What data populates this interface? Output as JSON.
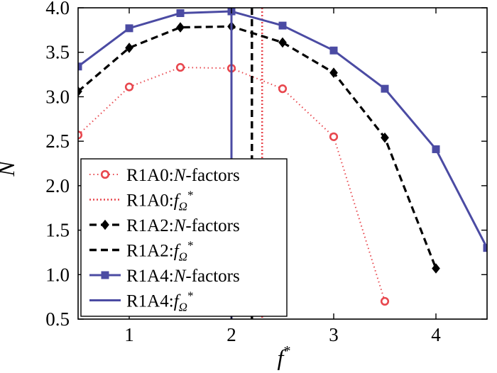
{
  "chart_data": {
    "type": "line",
    "title": "",
    "xlabel": "f*",
    "ylabel": "N",
    "xlim": [
      0.5,
      4.5
    ],
    "ylim": [
      0.5,
      4.0
    ],
    "xticks": [
      1,
      2,
      3,
      4
    ],
    "xtick_labels": [
      "1",
      "2",
      "3",
      "4"
    ],
    "yticks": [
      0.5,
      1.0,
      1.5,
      2.0,
      2.5,
      3.0,
      3.5,
      4.0
    ],
    "ytick_labels": [
      "0.5",
      "1.0",
      "1.5",
      "2.0",
      "2.5",
      "3.0",
      "3.5",
      "4.0"
    ],
    "grid": false,
    "legend_position": "lower-left",
    "series": [
      {
        "name": "R1A0:N-factors",
        "label_prefix": "R1A0:",
        "label_sym": "N",
        "label_suffix": "-factors",
        "color": "#e8474e",
        "line": "dotted",
        "marker": "open-circle",
        "x": [
          0.5,
          1.0,
          1.5,
          2.0,
          2.5,
          3.0,
          3.5
        ],
        "y": [
          2.57,
          3.11,
          3.33,
          3.32,
          3.09,
          2.55,
          0.7
        ]
      },
      {
        "name": "R1A0:fΩ*",
        "label_prefix": "R1A0:",
        "label_sym": "f",
        "label_sub": "Ω",
        "label_sup": "*",
        "color": "#e8474e",
        "line": "dotted-vertical",
        "x_value": 2.3
      },
      {
        "name": "R1A2:N-factors",
        "label_prefix": "R1A2:",
        "label_sym": "N",
        "label_suffix": "-factors",
        "color": "#000000",
        "line": "dashed",
        "marker": "diamond",
        "x": [
          0.5,
          1.0,
          1.5,
          2.0,
          2.5,
          3.0,
          3.5,
          4.0
        ],
        "y": [
          3.06,
          3.55,
          3.78,
          3.79,
          3.61,
          3.27,
          2.54,
          1.07
        ]
      },
      {
        "name": "R1A2:fΩ*",
        "label_prefix": "R1A2:",
        "label_sym": "f",
        "label_sub": "Ω",
        "label_sup": "*",
        "color": "#000000",
        "line": "dashed-vertical",
        "x_value": 2.2
      },
      {
        "name": "R1A4:N-factors",
        "label_prefix": "R1A4:",
        "label_sym": "N",
        "label_suffix": "-factors",
        "color": "#4b4ba3",
        "line": "solid",
        "marker": "square",
        "x": [
          0.5,
          1.0,
          1.5,
          2.0,
          2.5,
          3.0,
          3.5,
          4.0,
          4.5
        ],
        "y": [
          3.34,
          3.77,
          3.94,
          3.96,
          3.8,
          3.52,
          3.09,
          2.41,
          1.3
        ]
      },
      {
        "name": "R1A4:fΩ*",
        "label_prefix": "R1A4:",
        "label_sym": "f",
        "label_sub": "Ω",
        "label_sup": "*",
        "color": "#4b4ba3",
        "line": "solid-vertical",
        "x_value": 2.0
      }
    ]
  }
}
